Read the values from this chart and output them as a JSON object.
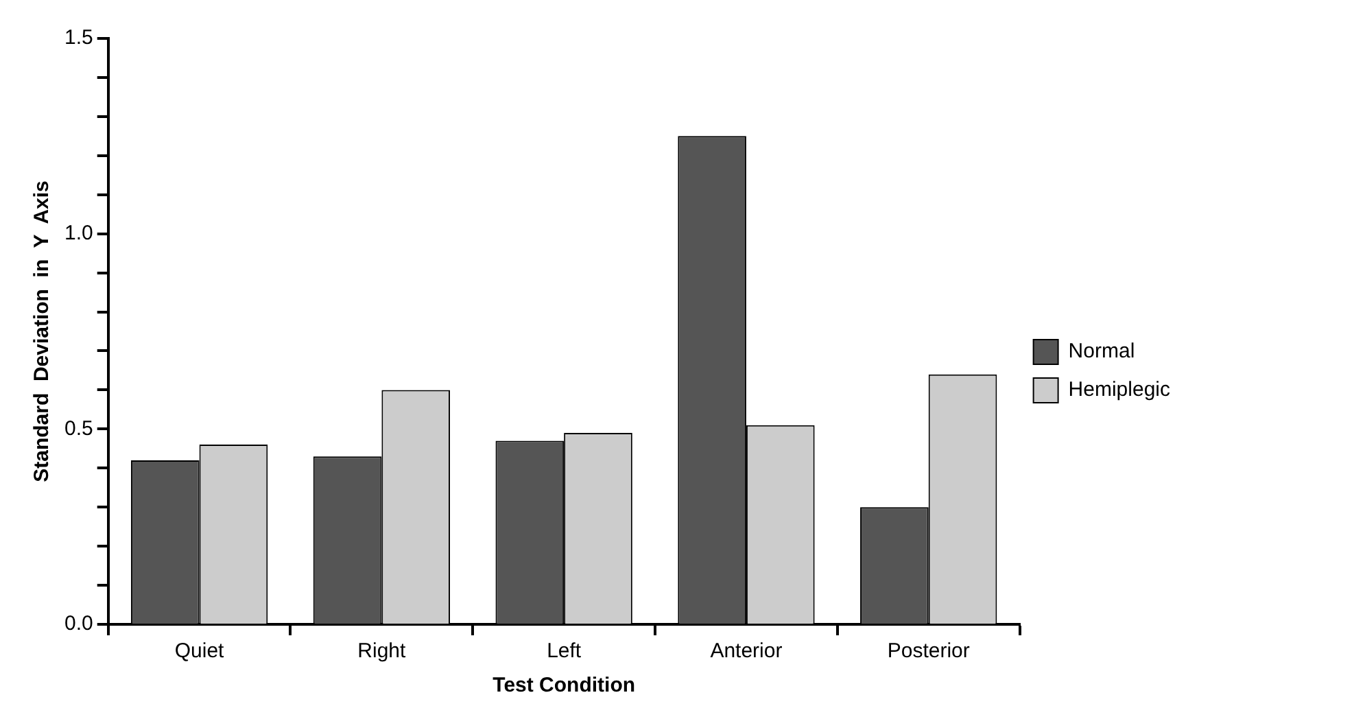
{
  "chart_data": {
    "type": "bar",
    "xlabel": "Test Condition",
    "ylabel": "Standard  Deviation  in  Y  Axis",
    "categories": [
      "Quiet",
      "Right",
      "Left",
      "Anterior",
      "Posterior"
    ],
    "series": [
      {
        "name": "Normal",
        "color": "#555555",
        "values": [
          0.42,
          0.43,
          0.47,
          1.25,
          0.3
        ]
      },
      {
        "name": "Hemiplegic",
        "color": "#cccccc",
        "values": [
          0.46,
          0.6,
          0.49,
          0.51,
          0.64
        ]
      }
    ],
    "ylim": [
      0,
      1.5
    ],
    "yticks": [
      {
        "value": 0,
        "label": "0.0"
      },
      {
        "value": 0.1,
        "label": null
      },
      {
        "value": 0.2,
        "label": null
      },
      {
        "value": 0.3,
        "label": null
      },
      {
        "value": 0.4,
        "label": null
      },
      {
        "value": 0.5,
        "label": "0.5"
      },
      {
        "value": 0.6,
        "label": null
      },
      {
        "value": 0.7,
        "label": null
      },
      {
        "value": 0.8,
        "label": null
      },
      {
        "value": 0.9,
        "label": null
      },
      {
        "value": 1.0,
        "label": "1.0"
      },
      {
        "value": 1.1,
        "label": null
      },
      {
        "value": 1.2,
        "label": null
      },
      {
        "value": 1.3,
        "label": null
      },
      {
        "value": 1.4,
        "label": null
      },
      {
        "value": 1.5,
        "label": "1.5"
      }
    ],
    "grid": false,
    "legend": "right"
  }
}
